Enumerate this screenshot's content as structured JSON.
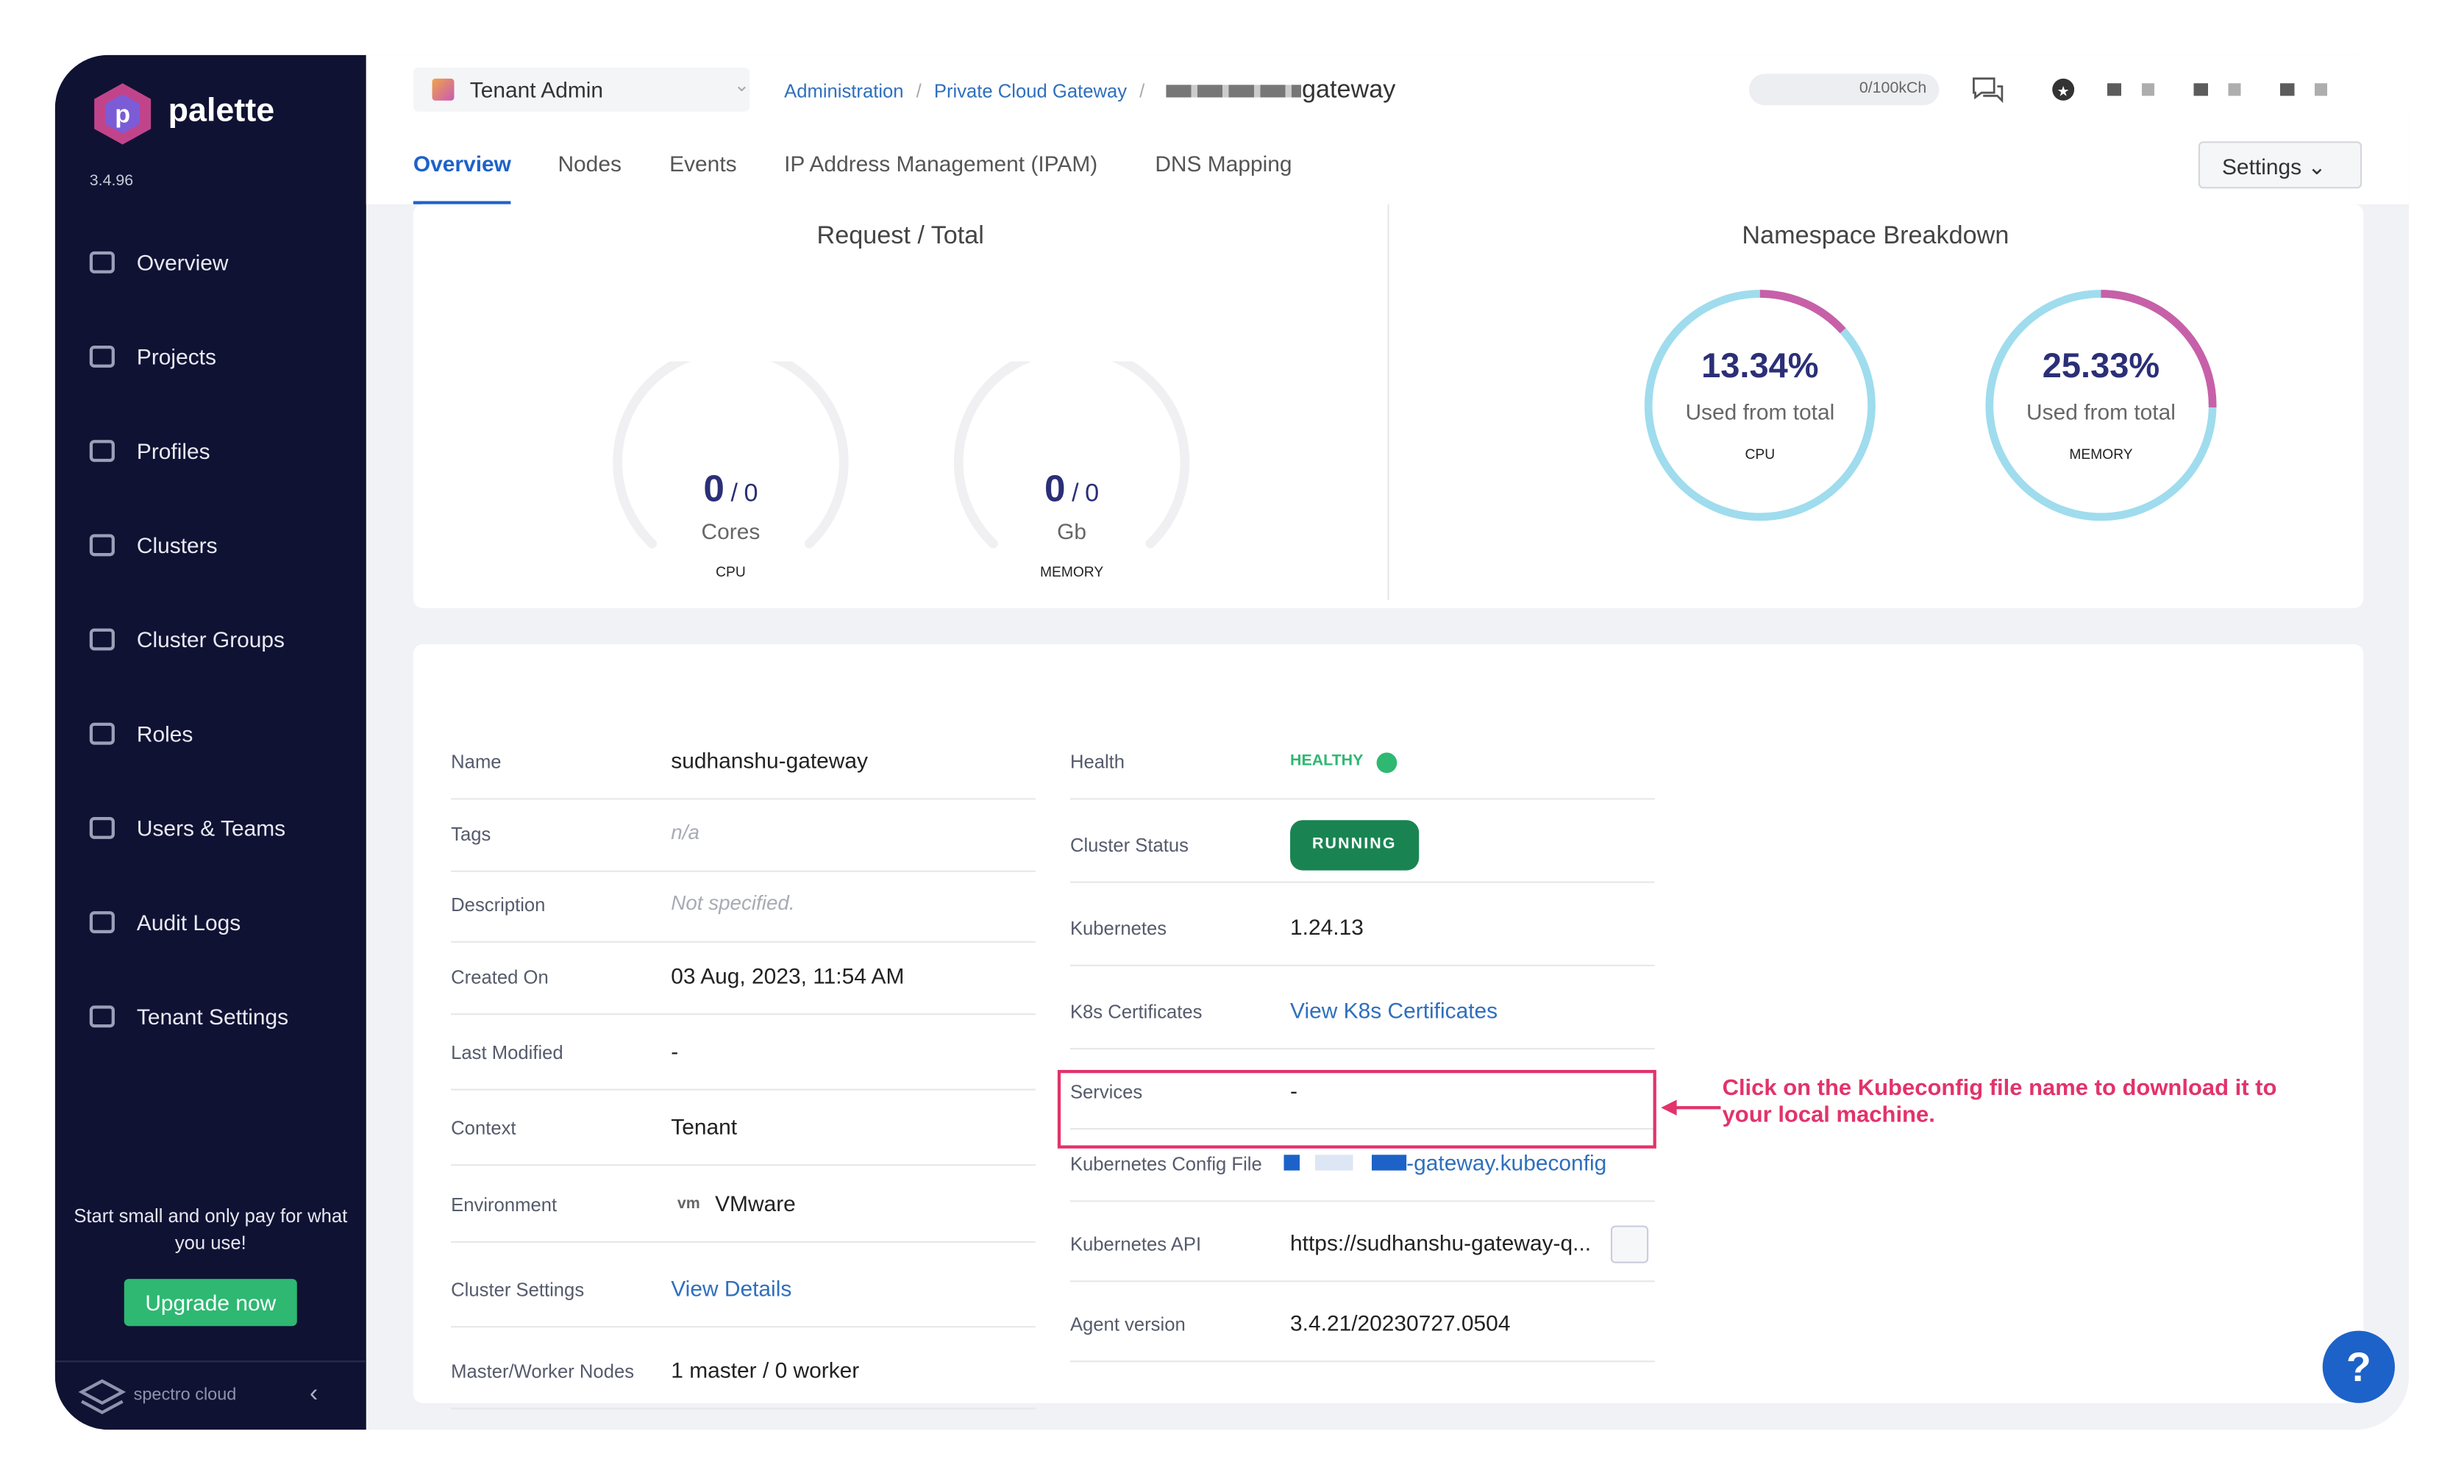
{
  "sidebar": {
    "logo": "palette",
    "version": "3.4.96",
    "nav": [
      "Overview",
      "Projects",
      "Profiles",
      "Clusters",
      "Cluster Groups",
      "Roles",
      "Users & Teams",
      "Audit Logs",
      "Tenant Settings"
    ],
    "promo": "Start small and only pay for what you use!",
    "upgrade": "Upgrade now",
    "footer": "spectro cloud"
  },
  "header": {
    "tenant": "Tenant Admin",
    "breadcrumbs": [
      "Administration",
      "Private Cloud Gateway",
      "gateway"
    ],
    "usage": "0/100kCh"
  },
  "tabs": [
    "Overview",
    "Nodes",
    "Events",
    "IP Address Management (IPAM)",
    "DNS Mapping"
  ],
  "settings": "Settings",
  "request_total": {
    "title": "Request / Total",
    "separator": "/",
    "gauges": [
      {
        "used": "0",
        "total": "0",
        "unit": "Cores",
        "label": "CPU"
      },
      {
        "used": "0",
        "total": "0",
        "unit": "Gb",
        "label": "MEMORY"
      }
    ]
  },
  "namespace_breakdown": {
    "title": "Namespace Breakdown",
    "donuts": [
      {
        "value": 13.34,
        "value_label": "13.34%",
        "caption": "Used from total",
        "label": "CPU"
      },
      {
        "value": 25.33,
        "value_label": "25.33%",
        "caption": "Used from total",
        "label": "MEMORY"
      }
    ]
  },
  "details": {
    "left": [
      {
        "label": "Name",
        "value": "sudhanshu-gateway"
      },
      {
        "label": "Tags",
        "value": "n/a"
      },
      {
        "label": "Description",
        "value": "Not specified."
      },
      {
        "label": "Created On",
        "value": "03 Aug, 2023, 11:54 AM"
      },
      {
        "label": "Last Modified",
        "value": "-"
      },
      {
        "label": "Context",
        "value": "Tenant"
      },
      {
        "label": "Environment",
        "icon": "vm",
        "value": "VMware"
      },
      {
        "label": "Cluster Settings",
        "value": "View Details"
      },
      {
        "label": "Master/Worker Nodes",
        "value": "1 master / 0 worker"
      }
    ],
    "right": [
      {
        "label": "Health",
        "value": "HEALTHY"
      },
      {
        "label": "Cluster Status",
        "value": "RUNNING"
      },
      {
        "label": "Kubernetes",
        "value": "1.24.13"
      },
      {
        "label": "K8s Certificates",
        "value": "View K8s Certificates"
      },
      {
        "label": "Services",
        "value": "-"
      },
      {
        "label": "Kubernetes Config File",
        "value": "-gateway.kubeconfig"
      },
      {
        "label": "Kubernetes API",
        "value": "https://sudhanshu-gateway-q..."
      },
      {
        "label": "Agent version",
        "value": "3.4.21/20230727.0504"
      }
    ]
  },
  "annotation": "Click on the Kubeconfig file name to download it to your local machine.",
  "help": "?"
}
